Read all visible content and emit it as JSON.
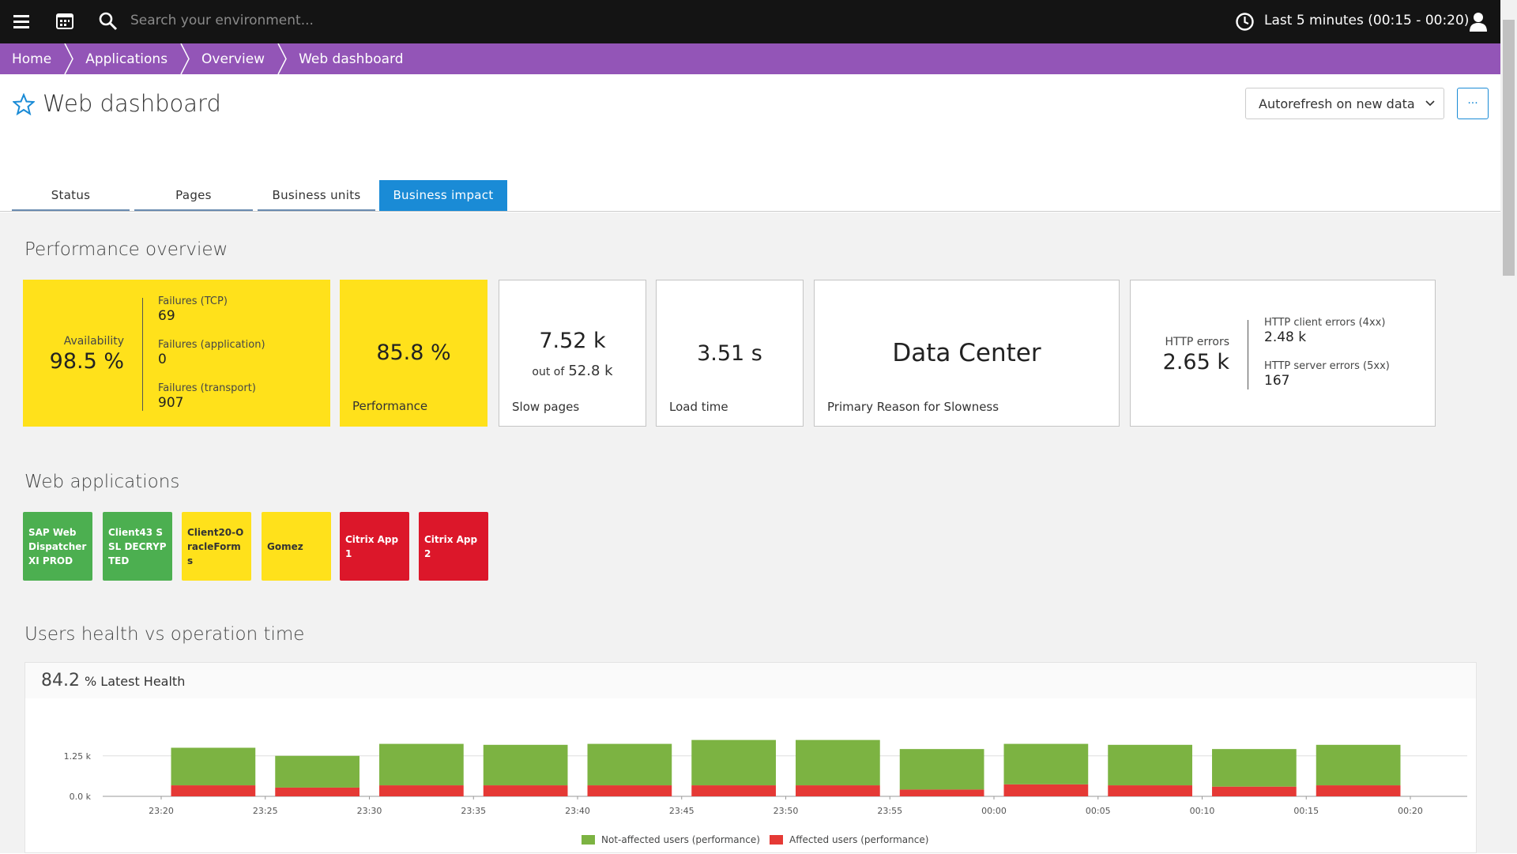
{
  "top_bar": {
    "search_placeholder": "Search your environment...",
    "time_range": "Last 5 minutes (00:15 - 00:20)"
  },
  "breadcrumb": [
    "Home",
    "Applications",
    "Overview",
    "Web dashboard"
  ],
  "header": {
    "title": "Web dashboard",
    "autorefresh": "Autorefresh on new data",
    "more": "···"
  },
  "tabs": {
    "items": [
      "Status",
      "Pages",
      "Business units",
      "Business impact"
    ],
    "active": 3
  },
  "performance_overview": {
    "title": "Performance overview",
    "availability": {
      "label": "Availability",
      "value": "98.5 %",
      "details": [
        {
          "label": "Failures (TCP)",
          "value": "69"
        },
        {
          "label": "Failures (application)",
          "value": "0"
        },
        {
          "label": "Failures (transport)",
          "value": "907"
        }
      ]
    },
    "performance": {
      "value": "85.8 %",
      "label": "Performance"
    },
    "slow_pages": {
      "value": "7.52 k",
      "out_of_label": "out of",
      "out_of_value": "52.8 k",
      "label": "Slow pages"
    },
    "load_time": {
      "value": "3.51 s",
      "label": "Load time"
    },
    "slowness_reason": {
      "value": "Data Center",
      "label": "Primary Reason for Slowness"
    },
    "http_errors": {
      "label": "HTTP errors",
      "value": "2.65 k",
      "details": [
        {
          "label": "HTTP client errors (4xx)",
          "value": "2.48 k"
        },
        {
          "label": "HTTP server errors (5xx)",
          "value": "167"
        }
      ]
    }
  },
  "web_applications": {
    "title": "Web applications",
    "apps": [
      {
        "name": "SAP Web Dispatcher XI PROD",
        "color": "#4caf50"
      },
      {
        "name": "Client43 SSL DECRYPTED",
        "color": "#4caf50"
      },
      {
        "name": "Client20-OracleForms",
        "color": "#ffe11b"
      },
      {
        "name": "Gomez",
        "color": "#ffe11b"
      },
      {
        "name": "Citrix App 1",
        "color": "#dc172a"
      },
      {
        "name": "Citrix App 2",
        "color": "#dc172a"
      }
    ]
  },
  "chart_data": {
    "type": "bar",
    "stacked": true,
    "title": "Users health vs operation time",
    "latest_value": "84.2",
    "latest_label": "% Latest Health",
    "xticks": [
      "23:20",
      "23:25",
      "23:30",
      "23:35",
      "23:40",
      "23:45",
      "23:50",
      "23:55",
      "00:00",
      "00:05",
      "00:10",
      "00:15",
      "00:20"
    ],
    "series": [
      {
        "name": "Not-affected users (performance)",
        "color": "#7cb342",
        "values": [
          1160,
          980,
          1280,
          1250,
          1280,
          1400,
          1400,
          1250,
          1250,
          1250,
          1160,
          1250
        ]
      },
      {
        "name": "Affected users (performance)",
        "color": "#e53935",
        "values": [
          340,
          270,
          340,
          340,
          340,
          340,
          340,
          210,
          370,
          340,
          300,
          340
        ]
      }
    ],
    "ylim": [
      0,
      2000
    ],
    "yticks": [
      {
        "value": 0,
        "label": "0.0 k"
      },
      {
        "value": 1250,
        "label": "1.25 k"
      }
    ],
    "grid": true
  }
}
